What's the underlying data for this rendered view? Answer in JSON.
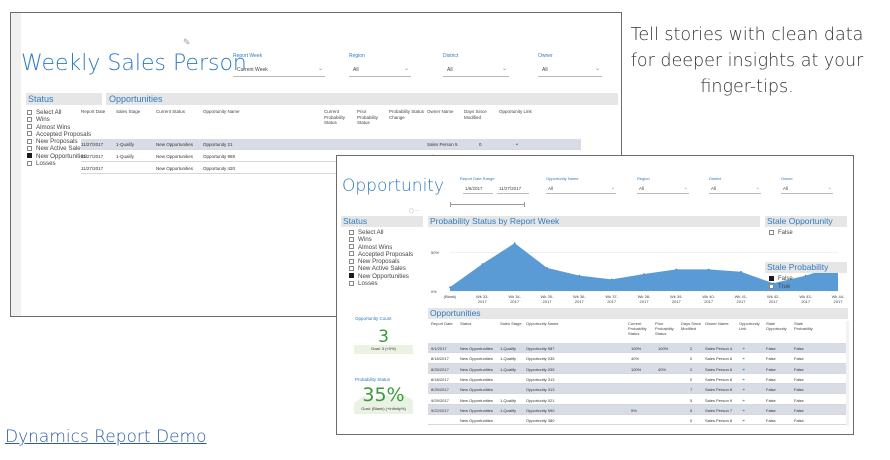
{
  "tagline": "Tell stories with clean data for deeper insights at your finger-tips.",
  "demo_link": "Dynamics Report Demo",
  "weekly": {
    "title": "Weekly Sales Person",
    "slicers": [
      {
        "label": "Report Week",
        "value": "Current Week"
      },
      {
        "label": "Region",
        "value": "All"
      },
      {
        "label": "District",
        "value": "All"
      },
      {
        "label": "Owner",
        "value": "All"
      }
    ],
    "status_title": "Status",
    "status_items": [
      "Select All",
      "Wins",
      "Almost Wins",
      "Accepted Proposals",
      "New Proposals",
      "New Active Sales",
      "New Opportunities",
      "Losses"
    ],
    "status_checked_index": 6,
    "opp_title": "Opportunities",
    "columns": [
      "Report Date",
      "Sales Stage",
      "Current Status",
      "Opportunity Name",
      "Current Probability Status",
      "Prior Probability Status",
      "Probability Status Change",
      "Owner Name",
      "Days Since Modified",
      "Opportunity Link"
    ],
    "rows": [
      {
        "date": "11/27/2017",
        "stage": "1-Qualify",
        "status": "New Opportunities",
        "name": "Opportunity 21",
        "owner": "Sales Person 5",
        "days": "0"
      },
      {
        "date": "11/27/2017",
        "stage": "1-Qualify",
        "status": "New Opportunities",
        "name": "Opportunity 969",
        "owner": "Sales Person 4",
        "days": "0"
      },
      {
        "date": "11/27/2017",
        "stage": "",
        "status": "New Opportunities",
        "name": "Opportunity 420",
        "owner": "",
        "days": ""
      }
    ]
  },
  "opportunity": {
    "title": "Opportunity",
    "date_range_label": "Report Date Range",
    "date_from": "1/6/2017",
    "date_to": "11/27/2017",
    "slicers": [
      {
        "label": "Opportunity Name",
        "value": "All"
      },
      {
        "label": "Region",
        "value": "All"
      },
      {
        "label": "District",
        "value": "All"
      },
      {
        "label": "Owner",
        "value": "All"
      }
    ],
    "status_title": "Status",
    "status_items": [
      "Select All",
      "Wins",
      "Almost Wins",
      "Accepted Proposals",
      "New Proposals",
      "New Active Sales",
      "New Opportunities",
      "Losses"
    ],
    "status_checked_index": 6,
    "kpi_count": {
      "label": "Opportunity Count",
      "value": "3",
      "goal": "Goal: 3 (+0%)"
    },
    "kpi_prob": {
      "label": "Probability Status",
      "value": "35%",
      "goal": "Goal: (Blank) (+Infinity%)"
    },
    "chart_title": "Probability Status by Report Week",
    "stale_opp_title": "Stale Opportunity",
    "stale_opp_items": [
      "False"
    ],
    "stale_prob_title": "Stale Probability",
    "stale_prob_items": [
      "False",
      "True"
    ],
    "stale_prob_checked_index": 0,
    "opp_title": "Opportunities",
    "columns": [
      "Report Date",
      "Status",
      "Sales Stage",
      "Opportunity Name",
      "Current Probability Status",
      "Prior Probability Status",
      "Days Since Modified",
      "Owner Name",
      "Opportunity Link",
      "Stale Opportunity",
      "Stale Probability"
    ],
    "rows": [
      {
        "date": "9/1/2017",
        "status": "New Opportunities",
        "stage": "1-Qualify",
        "name": "Opportunity 987",
        "cur": "100%",
        "prior": "100%",
        "days": "2",
        "owner": "Sales Person 4",
        "so": "False",
        "sp": "False"
      },
      {
        "date": "8/18/2017",
        "status": "New Opportunities",
        "stage": "1-Qualify",
        "name": "Opportunity 035",
        "cur": "40%",
        "prior": "",
        "days": "0",
        "owner": "Sales Person 6",
        "so": "False",
        "sp": "False"
      },
      {
        "date": "8/25/2017",
        "status": "New Opportunities",
        "stage": "1-Qualify",
        "name": "Opportunity 035",
        "cur": "100%",
        "prior": "40%",
        "days": "2",
        "owner": "Sales Person 6",
        "so": "False",
        "sp": "False"
      },
      {
        "date": "8/18/2017",
        "status": "New Opportunities",
        "stage": "",
        "name": "Opportunity 313",
        "cur": "",
        "prior": "",
        "days": "0",
        "owner": "Sales Person 8",
        "so": "False",
        "sp": "False"
      },
      {
        "date": "8/25/2017",
        "status": "New Opportunities",
        "stage": "",
        "name": "Opportunity 313",
        "cur": "",
        "prior": "",
        "days": "7",
        "owner": "Sales Person 8",
        "so": "False",
        "sp": "False"
      },
      {
        "date": "9/29/2017",
        "status": "New Opportunities",
        "stage": "1-Qualify",
        "name": "Opportunity 021",
        "cur": "",
        "prior": "",
        "days": "5",
        "owner": "Sales Person 9",
        "so": "False",
        "sp": "False"
      },
      {
        "date": "9/22/2017",
        "status": "New Opportunities",
        "stage": "1-Qualify",
        "name": "Opportunity 590",
        "cur": "5%",
        "prior": "",
        "days": "5",
        "owner": "Sales Person 7",
        "so": "False",
        "sp": "False"
      },
      {
        "date": "",
        "status": "New Opportunities",
        "stage": "",
        "name": "Opportunity 380",
        "cur": "",
        "prior": "",
        "days": "0",
        "owner": "Sales Person 8",
        "so": "False",
        "sp": "False"
      }
    ]
  },
  "chart_data": {
    "type": "area",
    "title": "Probability Status by Report Week",
    "categories": [
      "(Blank)",
      "Wk 33-2017",
      "Wk 34-2017",
      "Wk 35-2017",
      "Wk 36-2017",
      "Wk 37-2017",
      "Wk 38-2017",
      "Wk 39-2017",
      "Wk 40-2017",
      "Wk 41-2017",
      "Wk 42-2017",
      "Wk 43-2017",
      "Wk 44-2017"
    ],
    "values": [
      5,
      35,
      62,
      30,
      20,
      15,
      22,
      28,
      28,
      25,
      10,
      20,
      33
    ],
    "ylim": [
      0,
      70
    ],
    "yticks": [
      "0%",
      "50%"
    ],
    "color": "#5b9bd5"
  },
  "colors": {
    "accent": "#2e7bc0",
    "kpi_green": "#3a9a3a",
    "kpi_bg": "#e9f2e3",
    "header_bg": "#e6e6e6"
  }
}
